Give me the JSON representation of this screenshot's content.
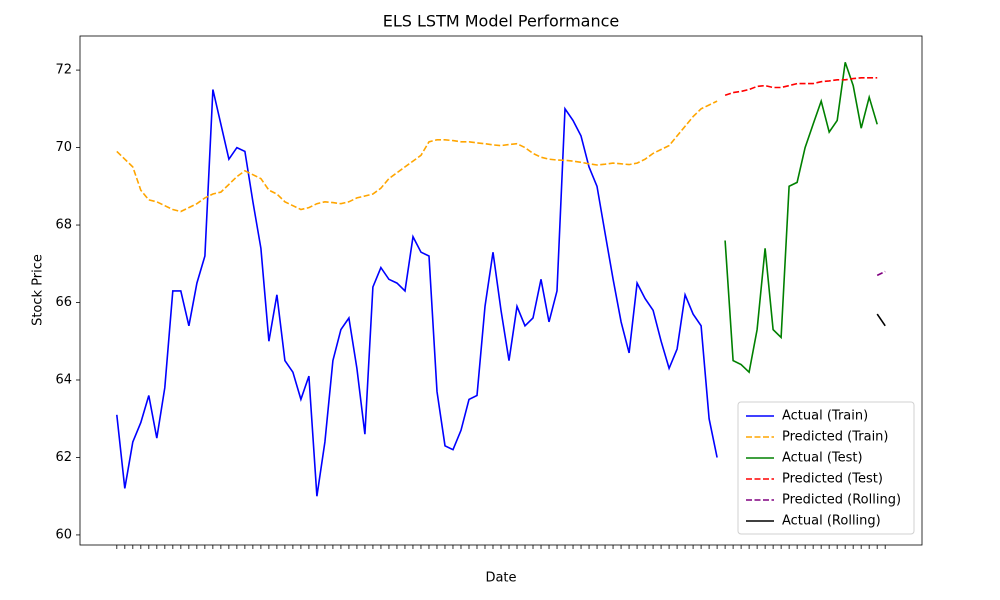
{
  "chart_data": {
    "type": "line",
    "title": "ELS LSTM Model Performance",
    "x_label": "Date",
    "y_label": "Stock Price",
    "xlim": [
      -4.6,
      100.6
    ],
    "ylim": [
      59.74,
      72.88
    ],
    "yticks": [
      60,
      62,
      64,
      66,
      68,
      70,
      72
    ],
    "grid": false,
    "legend": "lower right",
    "series": [
      {
        "name": "Actual (Train)",
        "color": "#0000ff",
        "linestyle": "solid",
        "values": [
          63.1,
          61.2,
          62.4,
          62.9,
          63.6,
          62.5,
          63.8,
          66.3,
          66.3,
          65.4,
          66.5,
          67.2,
          71.5,
          70.6,
          69.7,
          70.0,
          69.9,
          68.6,
          67.4,
          65.0,
          66.2,
          64.5,
          64.2,
          63.5,
          64.1,
          61.0,
          62.4,
          64.5,
          65.3,
          65.6,
          64.3,
          62.6,
          66.4,
          66.9,
          66.6,
          66.5,
          66.3,
          67.7,
          67.3,
          67.2,
          63.7,
          62.3,
          62.2,
          62.7,
          63.5,
          63.6,
          65.9,
          67.3,
          65.8,
          64.5,
          65.9,
          65.4,
          65.6,
          66.6,
          65.5,
          66.3,
          71.0,
          70.7,
          70.3,
          69.5,
          69.0,
          67.8,
          66.6,
          65.5,
          64.7,
          66.5,
          66.1,
          65.8,
          65.0,
          64.3,
          64.8,
          66.2,
          65.7,
          65.4,
          63.0,
          62.0,
          null,
          null,
          null,
          null,
          null,
          null,
          null,
          null,
          null,
          null,
          null,
          null,
          null,
          null,
          null,
          null,
          null,
          null,
          null,
          null,
          null
        ]
      },
      {
        "name": "Predicted (Train)",
        "color": "orange",
        "linestyle": "dashed",
        "values": [
          69.9,
          69.7,
          69.5,
          68.9,
          68.65,
          68.6,
          68.5,
          68.4,
          68.35,
          68.45,
          68.55,
          68.7,
          68.8,
          68.85,
          69.05,
          69.25,
          69.4,
          69.3,
          69.2,
          68.9,
          68.8,
          68.6,
          68.5,
          68.4,
          68.45,
          68.55,
          68.6,
          68.58,
          68.55,
          68.6,
          68.7,
          68.75,
          68.8,
          68.95,
          69.2,
          69.35,
          69.5,
          69.65,
          69.8,
          70.15,
          70.2,
          70.2,
          70.18,
          70.15,
          70.15,
          70.12,
          70.1,
          70.07,
          70.05,
          70.08,
          70.1,
          70.0,
          69.85,
          69.75,
          69.7,
          69.68,
          69.67,
          69.65,
          69.62,
          69.58,
          69.55,
          69.57,
          69.6,
          69.58,
          69.56,
          69.6,
          69.7,
          69.85,
          69.95,
          70.05,
          70.3,
          70.55,
          70.8,
          71.0,
          71.1,
          71.2,
          null,
          null,
          null,
          null,
          null,
          null,
          null,
          null,
          null,
          null,
          null,
          null,
          null,
          null,
          null,
          null,
          null,
          null,
          null,
          null,
          null
        ]
      },
      {
        "name": "Actual (Test)",
        "color": "green",
        "linestyle": "solid",
        "values": [
          null,
          null,
          null,
          null,
          null,
          null,
          null,
          null,
          null,
          null,
          null,
          null,
          null,
          null,
          null,
          null,
          null,
          null,
          null,
          null,
          null,
          null,
          null,
          null,
          null,
          null,
          null,
          null,
          null,
          null,
          null,
          null,
          null,
          null,
          null,
          null,
          null,
          null,
          null,
          null,
          null,
          null,
          null,
          null,
          null,
          null,
          null,
          null,
          null,
          null,
          null,
          null,
          null,
          null,
          null,
          null,
          null,
          null,
          null,
          null,
          null,
          null,
          null,
          null,
          null,
          null,
          null,
          null,
          null,
          null,
          null,
          null,
          null,
          null,
          null,
          null,
          67.6,
          64.5,
          64.4,
          64.2,
          65.3,
          67.4,
          65.3,
          65.1,
          69.0,
          69.1,
          70.0,
          70.6,
          71.2,
          70.4,
          70.7,
          72.2,
          71.6,
          70.5,
          71.3,
          70.6,
          null
        ]
      },
      {
        "name": "Predicted (Test)",
        "color": "red",
        "linestyle": "dashed",
        "values": [
          null,
          null,
          null,
          null,
          null,
          null,
          null,
          null,
          null,
          null,
          null,
          null,
          null,
          null,
          null,
          null,
          null,
          null,
          null,
          null,
          null,
          null,
          null,
          null,
          null,
          null,
          null,
          null,
          null,
          null,
          null,
          null,
          null,
          null,
          null,
          null,
          null,
          null,
          null,
          null,
          null,
          null,
          null,
          null,
          null,
          null,
          null,
          null,
          null,
          null,
          null,
          null,
          null,
          null,
          null,
          null,
          null,
          null,
          null,
          null,
          null,
          null,
          null,
          null,
          null,
          null,
          null,
          null,
          null,
          null,
          null,
          null,
          null,
          null,
          null,
          null,
          71.35,
          71.42,
          71.45,
          71.5,
          71.58,
          71.6,
          71.55,
          71.55,
          71.6,
          71.65,
          71.65,
          71.65,
          71.7,
          71.72,
          71.75,
          71.75,
          71.78,
          71.8,
          71.8,
          71.8,
          null
        ]
      },
      {
        "name": "Predicted (Rolling)",
        "color": "purple",
        "linestyle": "dashed",
        "values": [
          null,
          null,
          null,
          null,
          null,
          null,
          null,
          null,
          null,
          null,
          null,
          null,
          null,
          null,
          null,
          null,
          null,
          null,
          null,
          null,
          null,
          null,
          null,
          null,
          null,
          null,
          null,
          null,
          null,
          null,
          null,
          null,
          null,
          null,
          null,
          null,
          null,
          null,
          null,
          null,
          null,
          null,
          null,
          null,
          null,
          null,
          null,
          null,
          null,
          null,
          null,
          null,
          null,
          null,
          null,
          null,
          null,
          null,
          null,
          null,
          null,
          null,
          null,
          null,
          null,
          null,
          null,
          null,
          null,
          null,
          null,
          null,
          null,
          null,
          null,
          null,
          null,
          null,
          null,
          null,
          null,
          null,
          null,
          null,
          null,
          null,
          null,
          null,
          null,
          null,
          null,
          null,
          null,
          null,
          null,
          66.7,
          66.8
        ]
      },
      {
        "name": "Actual (Rolling)",
        "color": "black",
        "linestyle": "solid",
        "values": [
          null,
          null,
          null,
          null,
          null,
          null,
          null,
          null,
          null,
          null,
          null,
          null,
          null,
          null,
          null,
          null,
          null,
          null,
          null,
          null,
          null,
          null,
          null,
          null,
          null,
          null,
          null,
          null,
          null,
          null,
          null,
          null,
          null,
          null,
          null,
          null,
          null,
          null,
          null,
          null,
          null,
          null,
          null,
          null,
          null,
          null,
          null,
          null,
          null,
          null,
          null,
          null,
          null,
          null,
          null,
          null,
          null,
          null,
          null,
          null,
          null,
          null,
          null,
          null,
          null,
          null,
          null,
          null,
          null,
          null,
          null,
          null,
          null,
          null,
          null,
          null,
          null,
          null,
          null,
          null,
          null,
          null,
          null,
          null,
          null,
          null,
          null,
          null,
          null,
          null,
          null,
          null,
          null,
          null,
          null,
          65.7,
          65.4
        ]
      }
    ]
  }
}
